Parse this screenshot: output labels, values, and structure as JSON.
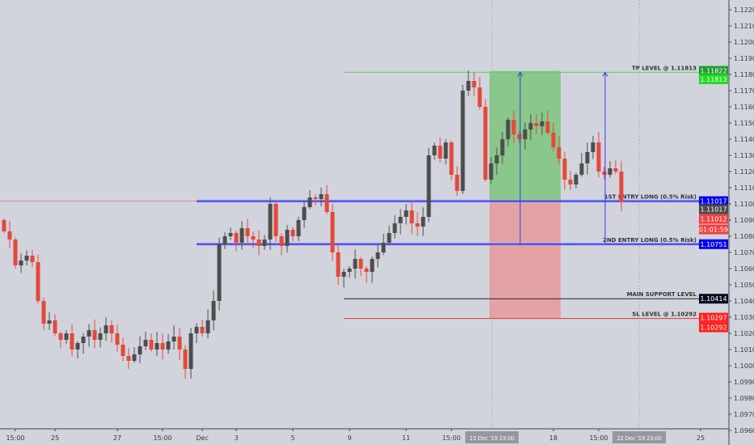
{
  "chart_data": {
    "type": "candlestick",
    "instrument_hint": "",
    "price_axis": {
      "range": [
        1.0955,
        1.1226
      ],
      "ticks": [
        "1.12200",
        "1.12100",
        "1.12000",
        "1.11900",
        "1.11800",
        "1.11700",
        "1.11600",
        "1.11500",
        "1.11400",
        "1.11300",
        "1.11200",
        "1.11100",
        "1.11000",
        "1.10900",
        "1.10800",
        "1.10700",
        "1.10600",
        "1.10500",
        "1.10400",
        "1.10300",
        "1.10200",
        "1.10100",
        "1.10000",
        "1.09900",
        "1.09800",
        "1.09700",
        "1.09600"
      ]
    },
    "time_axis": {
      "ticks": [
        {
          "label": "15:00",
          "bar": 2
        },
        {
          "label": "25",
          "bar": 9
        },
        {
          "label": "27",
          "bar": 20
        },
        {
          "label": "15:00",
          "bar": 28
        },
        {
          "label": "Dec",
          "bar": 35
        },
        {
          "label": "3",
          "bar": 41
        },
        {
          "label": "5",
          "bar": 51
        },
        {
          "label": "9",
          "bar": 61
        },
        {
          "label": "11",
          "bar": 71
        },
        {
          "label": "15:00",
          "bar": 79
        },
        {
          "label": "18",
          "bar": 97
        },
        {
          "label": "15:00",
          "bar": 105
        },
        {
          "label": "25",
          "bar": 123
        }
      ],
      "cursor_labels": [
        {
          "label": "15 Dec '19  23:00",
          "bar": 86
        },
        {
          "label": "22 Dec '19  23:00",
          "bar": 112
        }
      ]
    },
    "closes": [
      1.1083,
      1.1078,
      1.1062,
      1.1065,
      1.1068,
      1.1064,
      1.104,
      1.1026,
      1.1028,
      1.102,
      1.1016,
      1.102,
      1.101,
      1.1014,
      1.1018,
      1.1022,
      1.1016,
      1.102,
      1.1025,
      1.102,
      1.1013,
      1.1006,
      1.1003,
      1.1007,
      1.1012,
      1.1016,
      1.101,
      1.1014,
      1.101,
      1.1015,
      1.1018,
      1.101,
      1.0998,
      1.102,
      1.1024,
      1.102,
      1.1028,
      1.104,
      1.1075,
      1.108,
      1.1082,
      1.1076,
      1.1085,
      1.108,
      1.1078,
      1.1074,
      1.1078,
      1.11,
      1.108,
      1.1074,
      1.1084,
      1.108,
      1.109,
      1.1098,
      1.1104,
      1.1103,
      1.1106,
      1.1095,
      1.107,
      1.1055,
      1.1058,
      1.106,
      1.1066,
      1.106,
      1.1058,
      1.1066,
      1.107,
      1.1076,
      1.1082,
      1.1088,
      1.1092,
      1.1096,
      1.1088,
      1.1086,
      1.1092,
      1.113,
      1.1136,
      1.1128,
      1.1138,
      1.1118,
      1.1108,
      1.117,
      1.1176,
      1.1172,
      1.116,
      1.1115,
      1.1125,
      1.113,
      1.114,
      1.1152,
      1.1143,
      1.114,
      1.1146,
      1.115,
      1.1148,
      1.1151,
      1.1144,
      1.1135,
      1.1128,
      1.1115,
      1.1112,
      1.1118,
      1.1125,
      1.1132,
      1.1138,
      1.112,
      1.1118,
      1.1122,
      1.112,
      1.11012
    ],
    "first_open": 1.109,
    "levels": [
      {
        "label": "TP LEVEL @ 1.11813",
        "price": 1.11813,
        "color": "#66cc66",
        "from_bar": 60
      },
      {
        "label": "1ST ENTRY LONG (0.5% Risk)",
        "price": 1.11017,
        "color": "#2a2aff",
        "from_bar": 34
      },
      {
        "label": "2ND ENTRY LONG (0.5% Risk)",
        "price": 1.10751,
        "color": "#2a2aff",
        "from_bar": 34
      },
      {
        "label": "MAIN SUPPORT LEVEL",
        "price": 1.10414,
        "color": "#222222",
        "from_bar": 60
      },
      {
        "label": "SL LEVEL @ 1.10292",
        "price": 1.10292,
        "color": "#ee3333",
        "from_bar": 60
      }
    ],
    "position": {
      "entry": 1.11017,
      "target": 1.11822,
      "stop": 1.10292,
      "from_bar": 86,
      "to_bar": 98
    },
    "arrows": [
      {
        "bar": 91,
        "from": 1.10751,
        "to": 1.11813
      },
      {
        "bar": 106,
        "from": 1.10751,
        "to": 1.11813
      }
    ],
    "price_tags": [
      {
        "text": "1.11822",
        "price": 1.11822,
        "color": "#1e9e2e"
      },
      {
        "text": "1.11813",
        "price": 1.1177,
        "color": "#22dd22"
      },
      {
        "text": "1.11017",
        "price": 1.11017,
        "color": "#0000ee"
      },
      {
        "text": "1.11017",
        "price": 1.10967,
        "color": "#4a4a4a"
      },
      {
        "text": "1.11012",
        "price": 1.10907,
        "color": "#f04040"
      },
      {
        "text": "01:01:59",
        "price": 1.10842,
        "color": "#f04040"
      },
      {
        "text": "1.10751",
        "price": 1.10751,
        "color": "#0000ee"
      },
      {
        "text": "1.10414",
        "price": 1.10414,
        "color": "#0a0a20"
      },
      {
        "text": "1.10297",
        "price": 1.10297,
        "color": "#ff2020"
      },
      {
        "text": "1.10292",
        "price": 1.10237,
        "color": "#ff2020"
      }
    ],
    "colors": {
      "up": "#4d4d4d",
      "down": "#e5483a",
      "background": "#d1d4dc",
      "profit": "#7dc47d",
      "loss": "#e69a9a"
    }
  }
}
